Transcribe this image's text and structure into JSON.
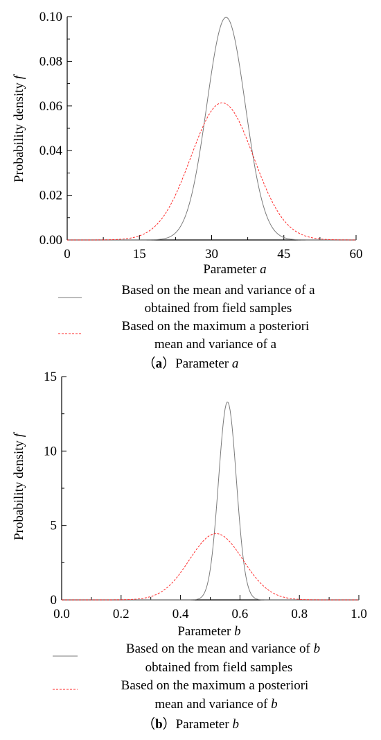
{
  "colors": {
    "field": "#7a7a7a",
    "posterior": "#ff2a2a"
  },
  "chart_data": [
    {
      "type": "line",
      "xlabel": "Parameter",
      "xlabel_var": "a",
      "ylabel": "Probability density",
      "ylabel_var": "f",
      "xlim": [
        0,
        60
      ],
      "ylim": [
        0,
        0.1
      ],
      "xticks": [
        "0",
        "15",
        "30",
        "45",
        "60"
      ],
      "yticks": [
        "0.00",
        "0.02",
        "0.04",
        "0.06",
        "0.08",
        "0.10"
      ],
      "grid": false,
      "series": [
        {
          "style": "solid",
          "color": "#7a7a7a",
          "mean": 33.0,
          "sd": 4.0,
          "peak": 0.0997
        },
        {
          "style": "dashed",
          "color": "#ff2a2a",
          "mean": 32.2,
          "sd": 6.5,
          "peak": 0.0614
        }
      ],
      "legend": [
        {
          "line1_prefix": "Based on the mean and variance of a",
          "line2_prefix": "obtained from field samples",
          "var": ""
        },
        {
          "line1_prefix": "Based on the maximum a posteriori",
          "line2_prefix": "mean and variance of a",
          "var": ""
        }
      ],
      "caption": {
        "open": "（",
        "letter": "a",
        "close": "）",
        "text": "Parameter",
        "var": "a"
      }
    },
    {
      "type": "line",
      "xlabel": "Parameter",
      "xlabel_var": "b",
      "ylabel": "Probability density",
      "ylabel_var": "f",
      "xlim": [
        0.0,
        1.0
      ],
      "ylim": [
        0,
        15
      ],
      "xticks": [
        "0.0",
        "0.2",
        "0.4",
        "0.6",
        "0.8",
        "1.0"
      ],
      "yticks": [
        "0",
        "5",
        "10",
        "15"
      ],
      "grid": false,
      "series": [
        {
          "style": "solid",
          "color": "#7a7a7a",
          "mean": 0.558,
          "sd": 0.03,
          "peak": 13.3
        },
        {
          "style": "dashed",
          "color": "#ff2a2a",
          "mean": 0.52,
          "sd": 0.09,
          "peak": 4.45
        }
      ],
      "legend": [
        {
          "line1_prefix": "Based on the mean and variance of ",
          "line1_var": "b",
          "line2_prefix": "obtained from field samples",
          "var": "b"
        },
        {
          "line1_prefix": "Based on the maximum a posteriori",
          "line2_prefix": "mean and variance of ",
          "line2_var": "b",
          "var": "b"
        }
      ],
      "caption": {
        "open": "（",
        "letter": "b",
        "close": "）",
        "text": "Parameter",
        "var": "b"
      }
    }
  ]
}
